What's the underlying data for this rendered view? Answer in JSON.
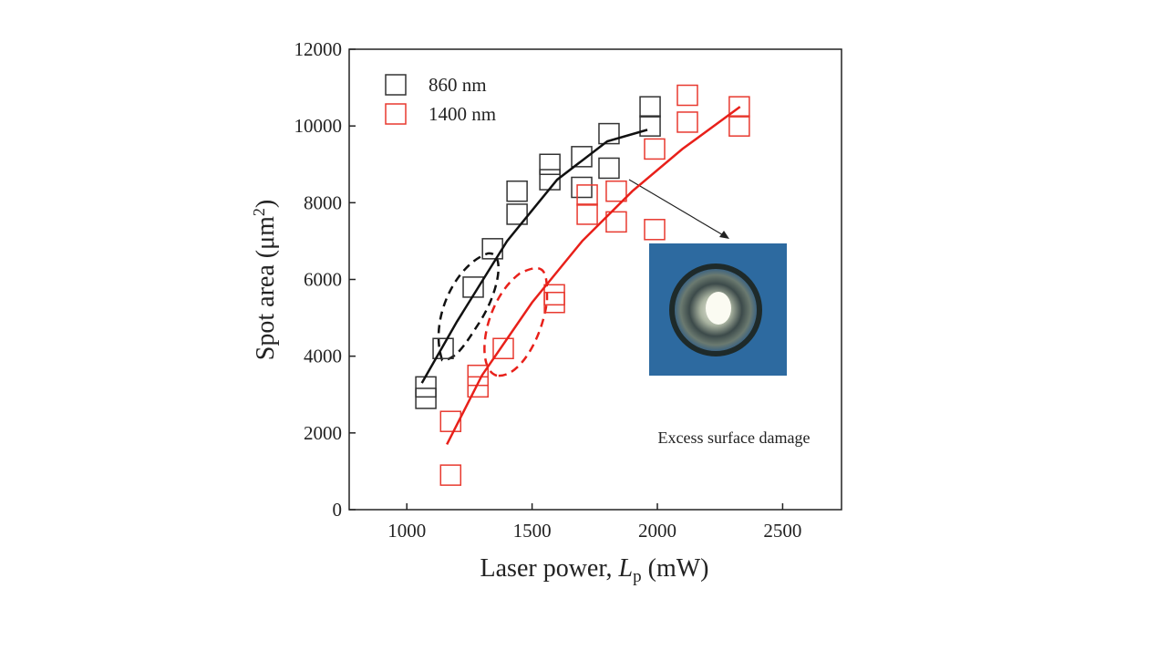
{
  "chart_data": {
    "type": "scatter",
    "x_label": {
      "text": "Laser power, ",
      "var": "L",
      "sub": "p",
      "unit": " (mW)"
    },
    "y_label": {
      "text": "Spot area (μm",
      "sup": "2",
      "close": ")"
    },
    "annotation": "Excess surface damage",
    "xlim": [
      770,
      2735
    ],
    "xticks": [
      1000,
      1500,
      2000,
      2500
    ],
    "ylim": [
      0,
      12000
    ],
    "yticks": [
      0,
      2000,
      4000,
      6000,
      8000,
      10000,
      12000
    ],
    "legend": "top-left",
    "series": [
      {
        "name": "860 nm",
        "color": "#333333",
        "x": [
          1076,
          1076,
          1145,
          1265,
          1342,
          1440,
          1440,
          1571,
          1571,
          1698,
          1698,
          1807,
          1807,
          1971,
          1971
        ],
        "values": [
          3200,
          2900,
          4200,
          5800,
          6800,
          8300,
          7700,
          9000,
          8600,
          9200,
          8400,
          9800,
          8900,
          10500,
          10000
        ]
      },
      {
        "name": "1400 nm",
        "color": "#e8392f",
        "x": [
          1175,
          1175,
          1284,
          1284,
          1385,
          1589,
          1589,
          1720,
          1720,
          1836,
          1836,
          1989,
          1989,
          2120,
          2120,
          2327,
          2327
        ],
        "values": [
          2300,
          900,
          3500,
          3200,
          4200,
          5600,
          5400,
          8200,
          7700,
          8300,
          7500,
          9400,
          7300,
          10800,
          10100,
          10500,
          10000
        ]
      }
    ],
    "fits": [
      {
        "color": "#111111",
        "x": [
          1060,
          1200,
          1400,
          1600,
          1800,
          1960
        ],
        "values": [
          3300,
          4900,
          7000,
          8600,
          9600,
          9900
        ]
      },
      {
        "color": "#e8201a",
        "x": [
          1160,
          1300,
          1500,
          1700,
          1900,
          2100,
          2330
        ],
        "values": [
          1700,
          3500,
          5400,
          7000,
          8300,
          9400,
          10500
        ]
      }
    ]
  }
}
